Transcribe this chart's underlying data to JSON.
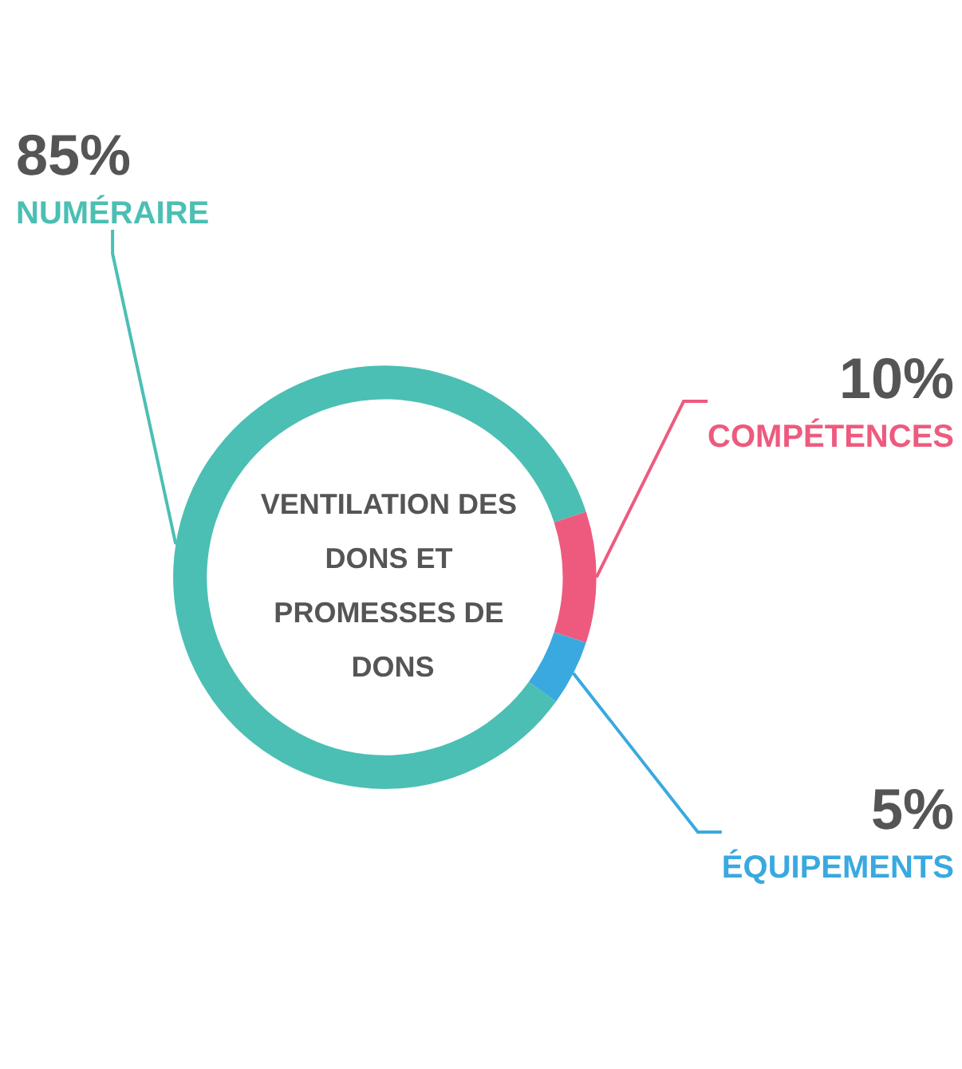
{
  "chart_data": {
    "type": "donut",
    "title": "VENTILATION DES DONS ET PROMESSES DE DONS",
    "categories": [
      "NUMÉRAIRE",
      "COMPÉTENCES",
      "ÉQUIPEMENTS"
    ],
    "values": [
      85,
      10,
      5
    ],
    "colors": [
      "#4bbfb3",
      "#ee5a7e",
      "#3aa9df"
    ],
    "value_labels": [
      "85%",
      "10%",
      "5%"
    ],
    "legend": false
  }
}
